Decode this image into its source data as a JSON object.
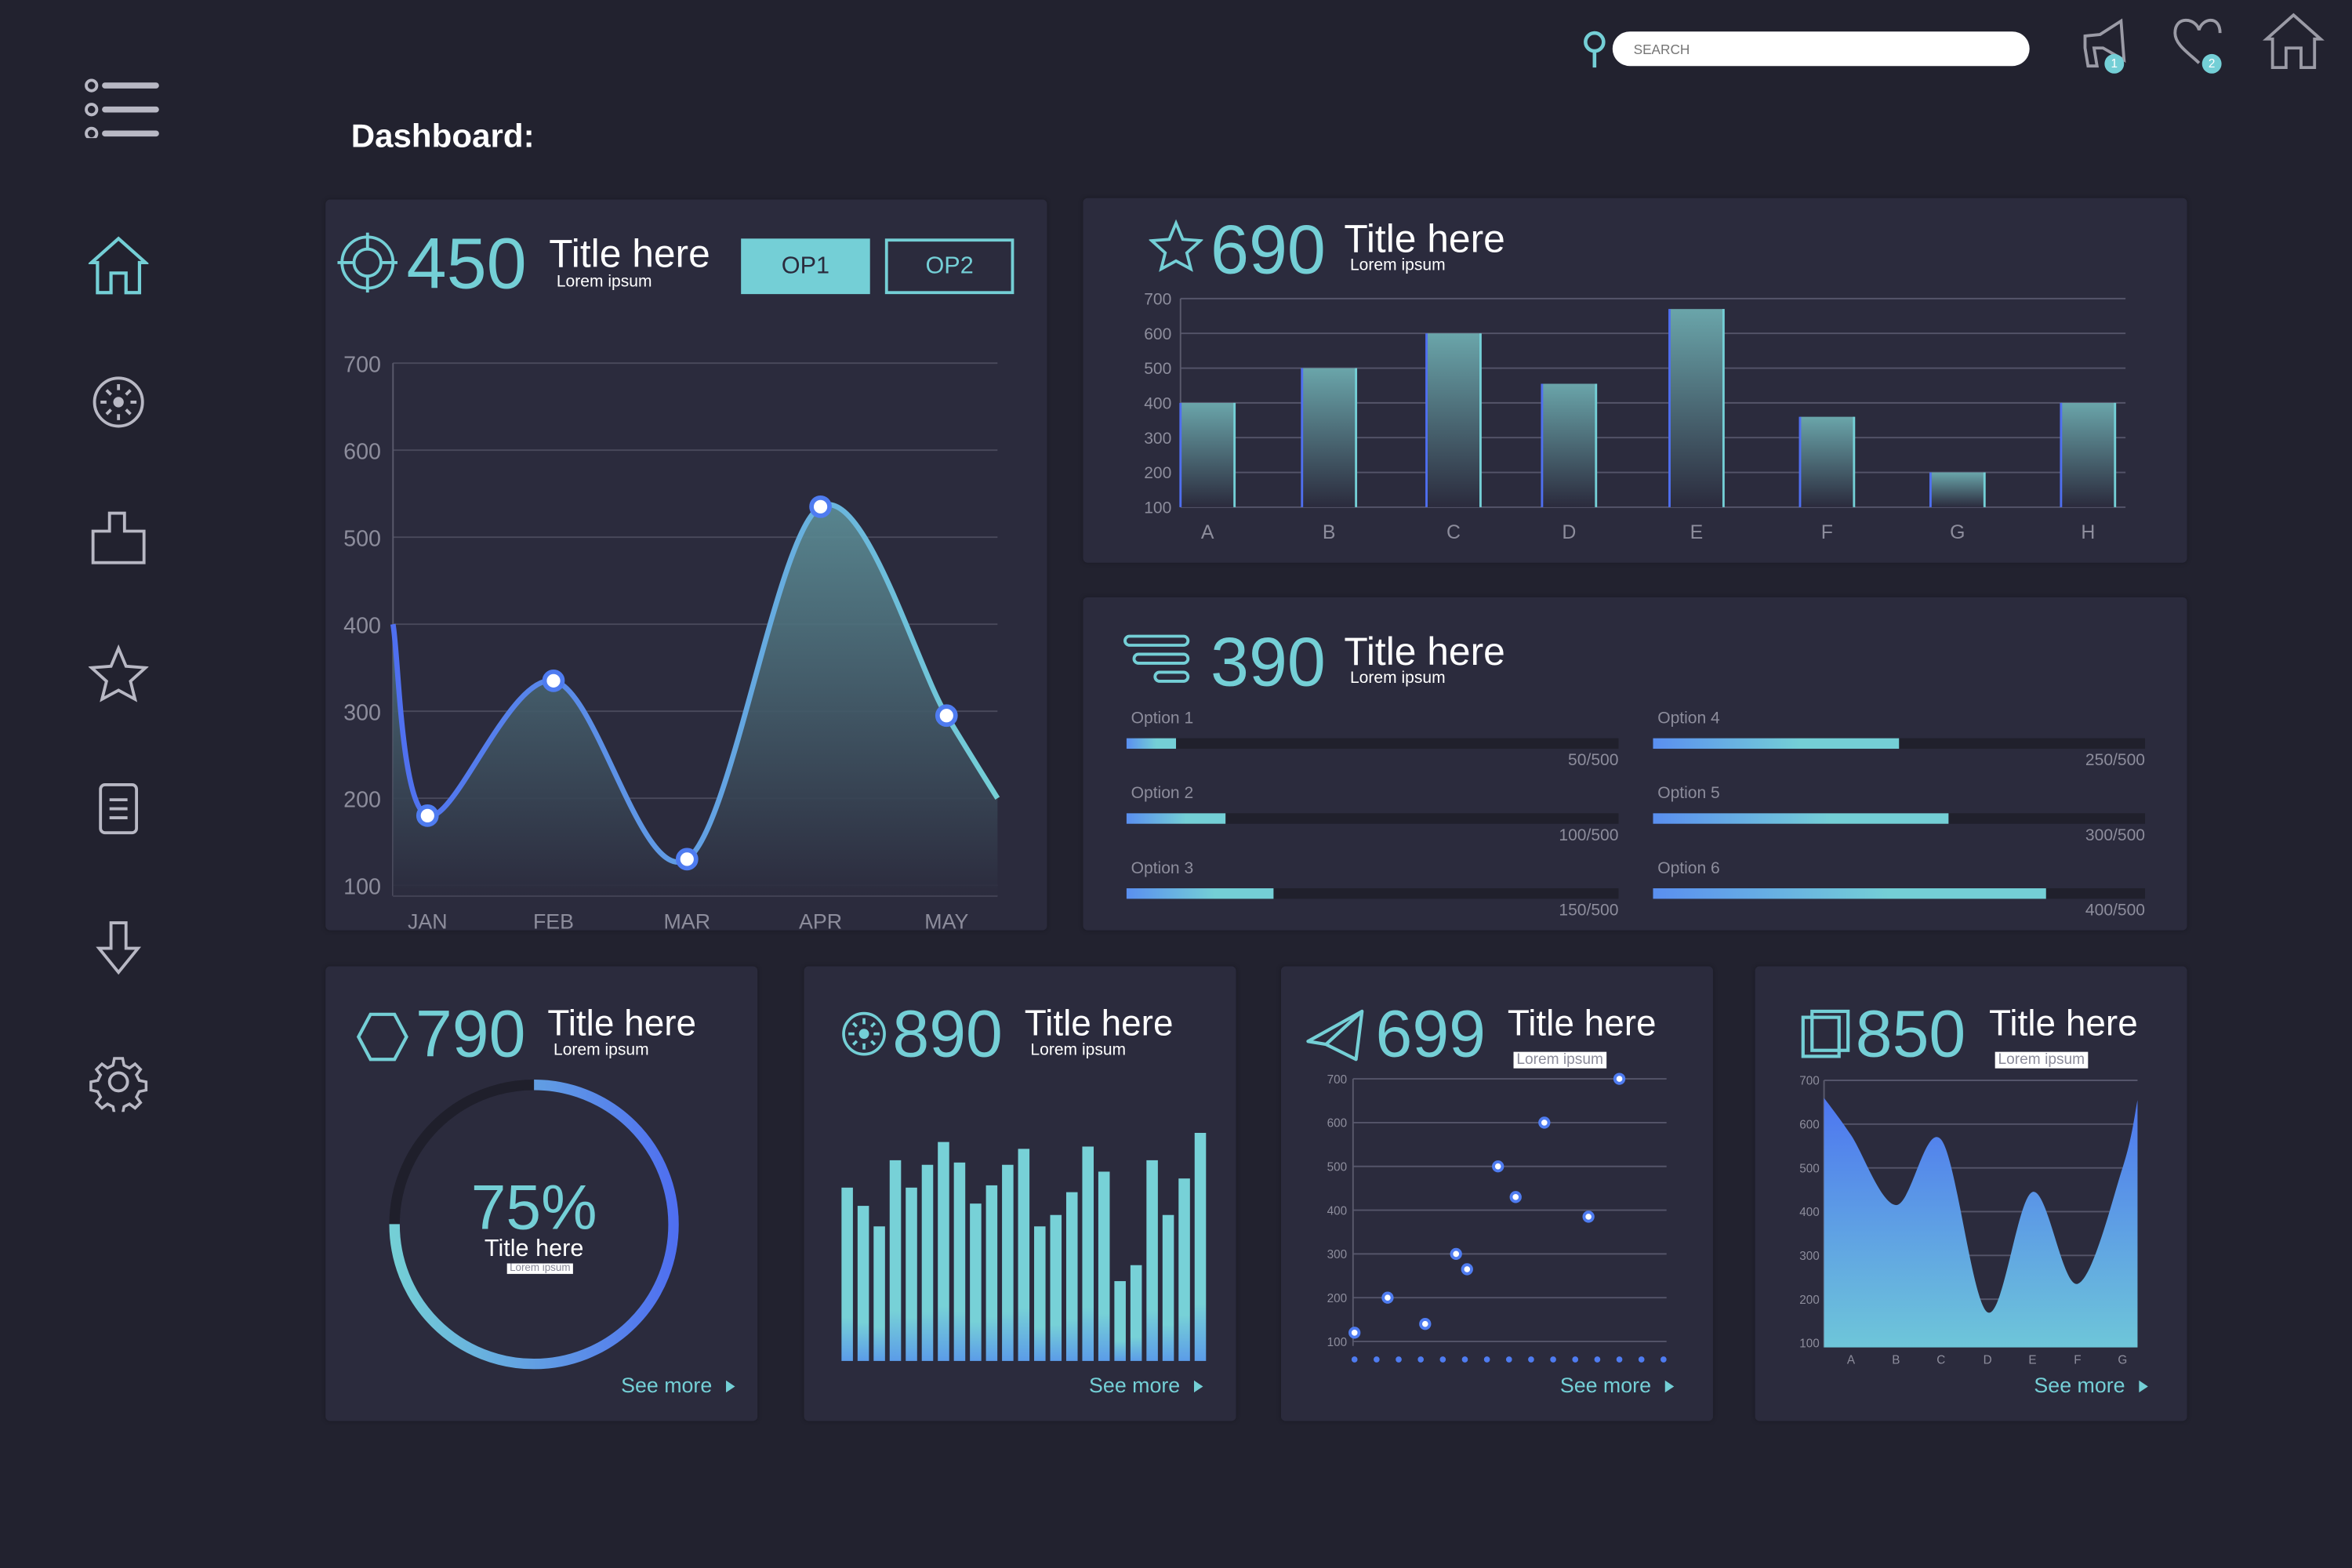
{
  "colors": {
    "background": "#22222f",
    "panel": "#2b2b3d",
    "accent": "#74cfd6",
    "blue": "#4f7cf0",
    "text": "#ffffff",
    "muted": "#8d8d9c"
  },
  "header": {
    "search_placeholder": "SEARCH",
    "icons": [
      "search-icon",
      "megaphone-icon",
      "heart-icon",
      "home-icon"
    ],
    "notifications_badge": "1",
    "favorites_badge": "2"
  },
  "sidebar": {
    "items": [
      {
        "icon": "menu-icon"
      },
      {
        "icon": "home-icon"
      },
      {
        "icon": "gauge-icon"
      },
      {
        "icon": "puzzle-icon"
      },
      {
        "icon": "star-icon"
      },
      {
        "icon": "document-icon"
      },
      {
        "icon": "download-icon"
      },
      {
        "icon": "settings-icon"
      }
    ]
  },
  "page_title": "Dashboard:",
  "panels": {
    "line": {
      "number": "450",
      "title": "Title here",
      "subtitle": "Lorem ipsum",
      "op1": "OP1",
      "op2": "OP2",
      "icon": "target-icon"
    },
    "bars": {
      "number": "690",
      "title": "Title here",
      "subtitle": "Lorem ipsum",
      "icon": "star-icon"
    },
    "progress": {
      "number": "390",
      "title": "Title here",
      "subtitle": "Lorem ipsum",
      "icon": "list-icon",
      "items": [
        {
          "label": "Option 1",
          "value": 50,
          "max": 500,
          "text": "50/500"
        },
        {
          "label": "Option 2",
          "value": 100,
          "max": 500,
          "text": "100/500"
        },
        {
          "label": "Option 3",
          "value": 150,
          "max": 500,
          "text": "150/500"
        },
        {
          "label": "Option 4",
          "value": 250,
          "max": 500,
          "text": "250/500"
        },
        {
          "label": "Option 5",
          "value": 300,
          "max": 500,
          "text": "300/500"
        },
        {
          "label": "Option 6",
          "value": 400,
          "max": 500,
          "text": "400/500"
        }
      ]
    },
    "donut": {
      "number": "790",
      "title": "Title here",
      "subtitle": "Lorem ipsum",
      "center_value": "75%",
      "center_title": "Title here",
      "center_subtitle": "Lorem ipsum",
      "see_more": "See more",
      "icon": "hexagon-icon"
    },
    "histogram": {
      "number": "890",
      "title": "Title here",
      "subtitle": "Lorem ipsum",
      "see_more": "See more",
      "icon": "gauge-icon"
    },
    "scatter": {
      "number": "699",
      "title": "Title here",
      "subtitle": "Lorem ipsum",
      "see_more": "See more",
      "icon": "paper-plane-icon"
    },
    "area": {
      "number": "850",
      "title": "Title here",
      "subtitle": "Lorem ipsum",
      "see_more": "See more",
      "icon": "layers-icon"
    }
  },
  "chart_data": [
    {
      "type": "line",
      "categories": [
        "JAN",
        "FEB",
        "MAR",
        "APR",
        "MAY"
      ],
      "values": [
        180,
        335,
        130,
        535,
        295
      ],
      "series_start": 400,
      "series_end": 200,
      "yticks": [
        "700",
        "600",
        "500",
        "400",
        "300",
        "200",
        "100"
      ],
      "ylim": [
        100,
        700
      ],
      "grid": true
    },
    {
      "type": "bar",
      "categories": [
        "A",
        "B",
        "C",
        "D",
        "E",
        "F",
        "G",
        "H"
      ],
      "values": [
        400,
        500,
        600,
        455,
        670,
        360,
        200,
        400
      ],
      "yticks": [
        "700",
        "600",
        "500",
        "400",
        "300",
        "200",
        "100"
      ],
      "ylim": [
        100,
        700
      ],
      "grid": true
    },
    {
      "type": "pie",
      "values": [
        75
      ],
      "unit": "%"
    },
    {
      "type": "bar",
      "values": [
        76,
        68,
        59,
        88,
        76,
        86,
        96,
        87,
        69,
        77,
        86,
        93,
        59,
        64,
        74,
        94,
        83,
        35,
        42,
        88,
        64,
        80,
        100
      ],
      "note_units": "relative"
    },
    {
      "type": "scatter",
      "x": [
        0,
        1.5,
        3.2,
        4.6,
        5.1,
        6.5,
        7.3,
        8.6,
        10.6,
        12.0
      ],
      "y": [
        120,
        200,
        140,
        300,
        265,
        500,
        430,
        600,
        385,
        700
      ],
      "xlim": [
        0,
        14
      ],
      "yticks": [
        "700",
        "600",
        "500",
        "400",
        "300",
        "200",
        "100"
      ],
      "ylim": [
        100,
        700
      ],
      "grid": true
    },
    {
      "type": "area",
      "categories": [
        "A",
        "B",
        "C",
        "D",
        "E",
        "F",
        "G"
      ],
      "values": [
        575,
        415,
        565,
        170,
        445,
        235,
        500
      ],
      "series_start": 660,
      "series_end": 655,
      "yticks": [
        "700",
        "600",
        "500",
        "400",
        "300",
        "200",
        "100"
      ],
      "ylim": [
        100,
        700
      ],
      "grid": true
    }
  ]
}
